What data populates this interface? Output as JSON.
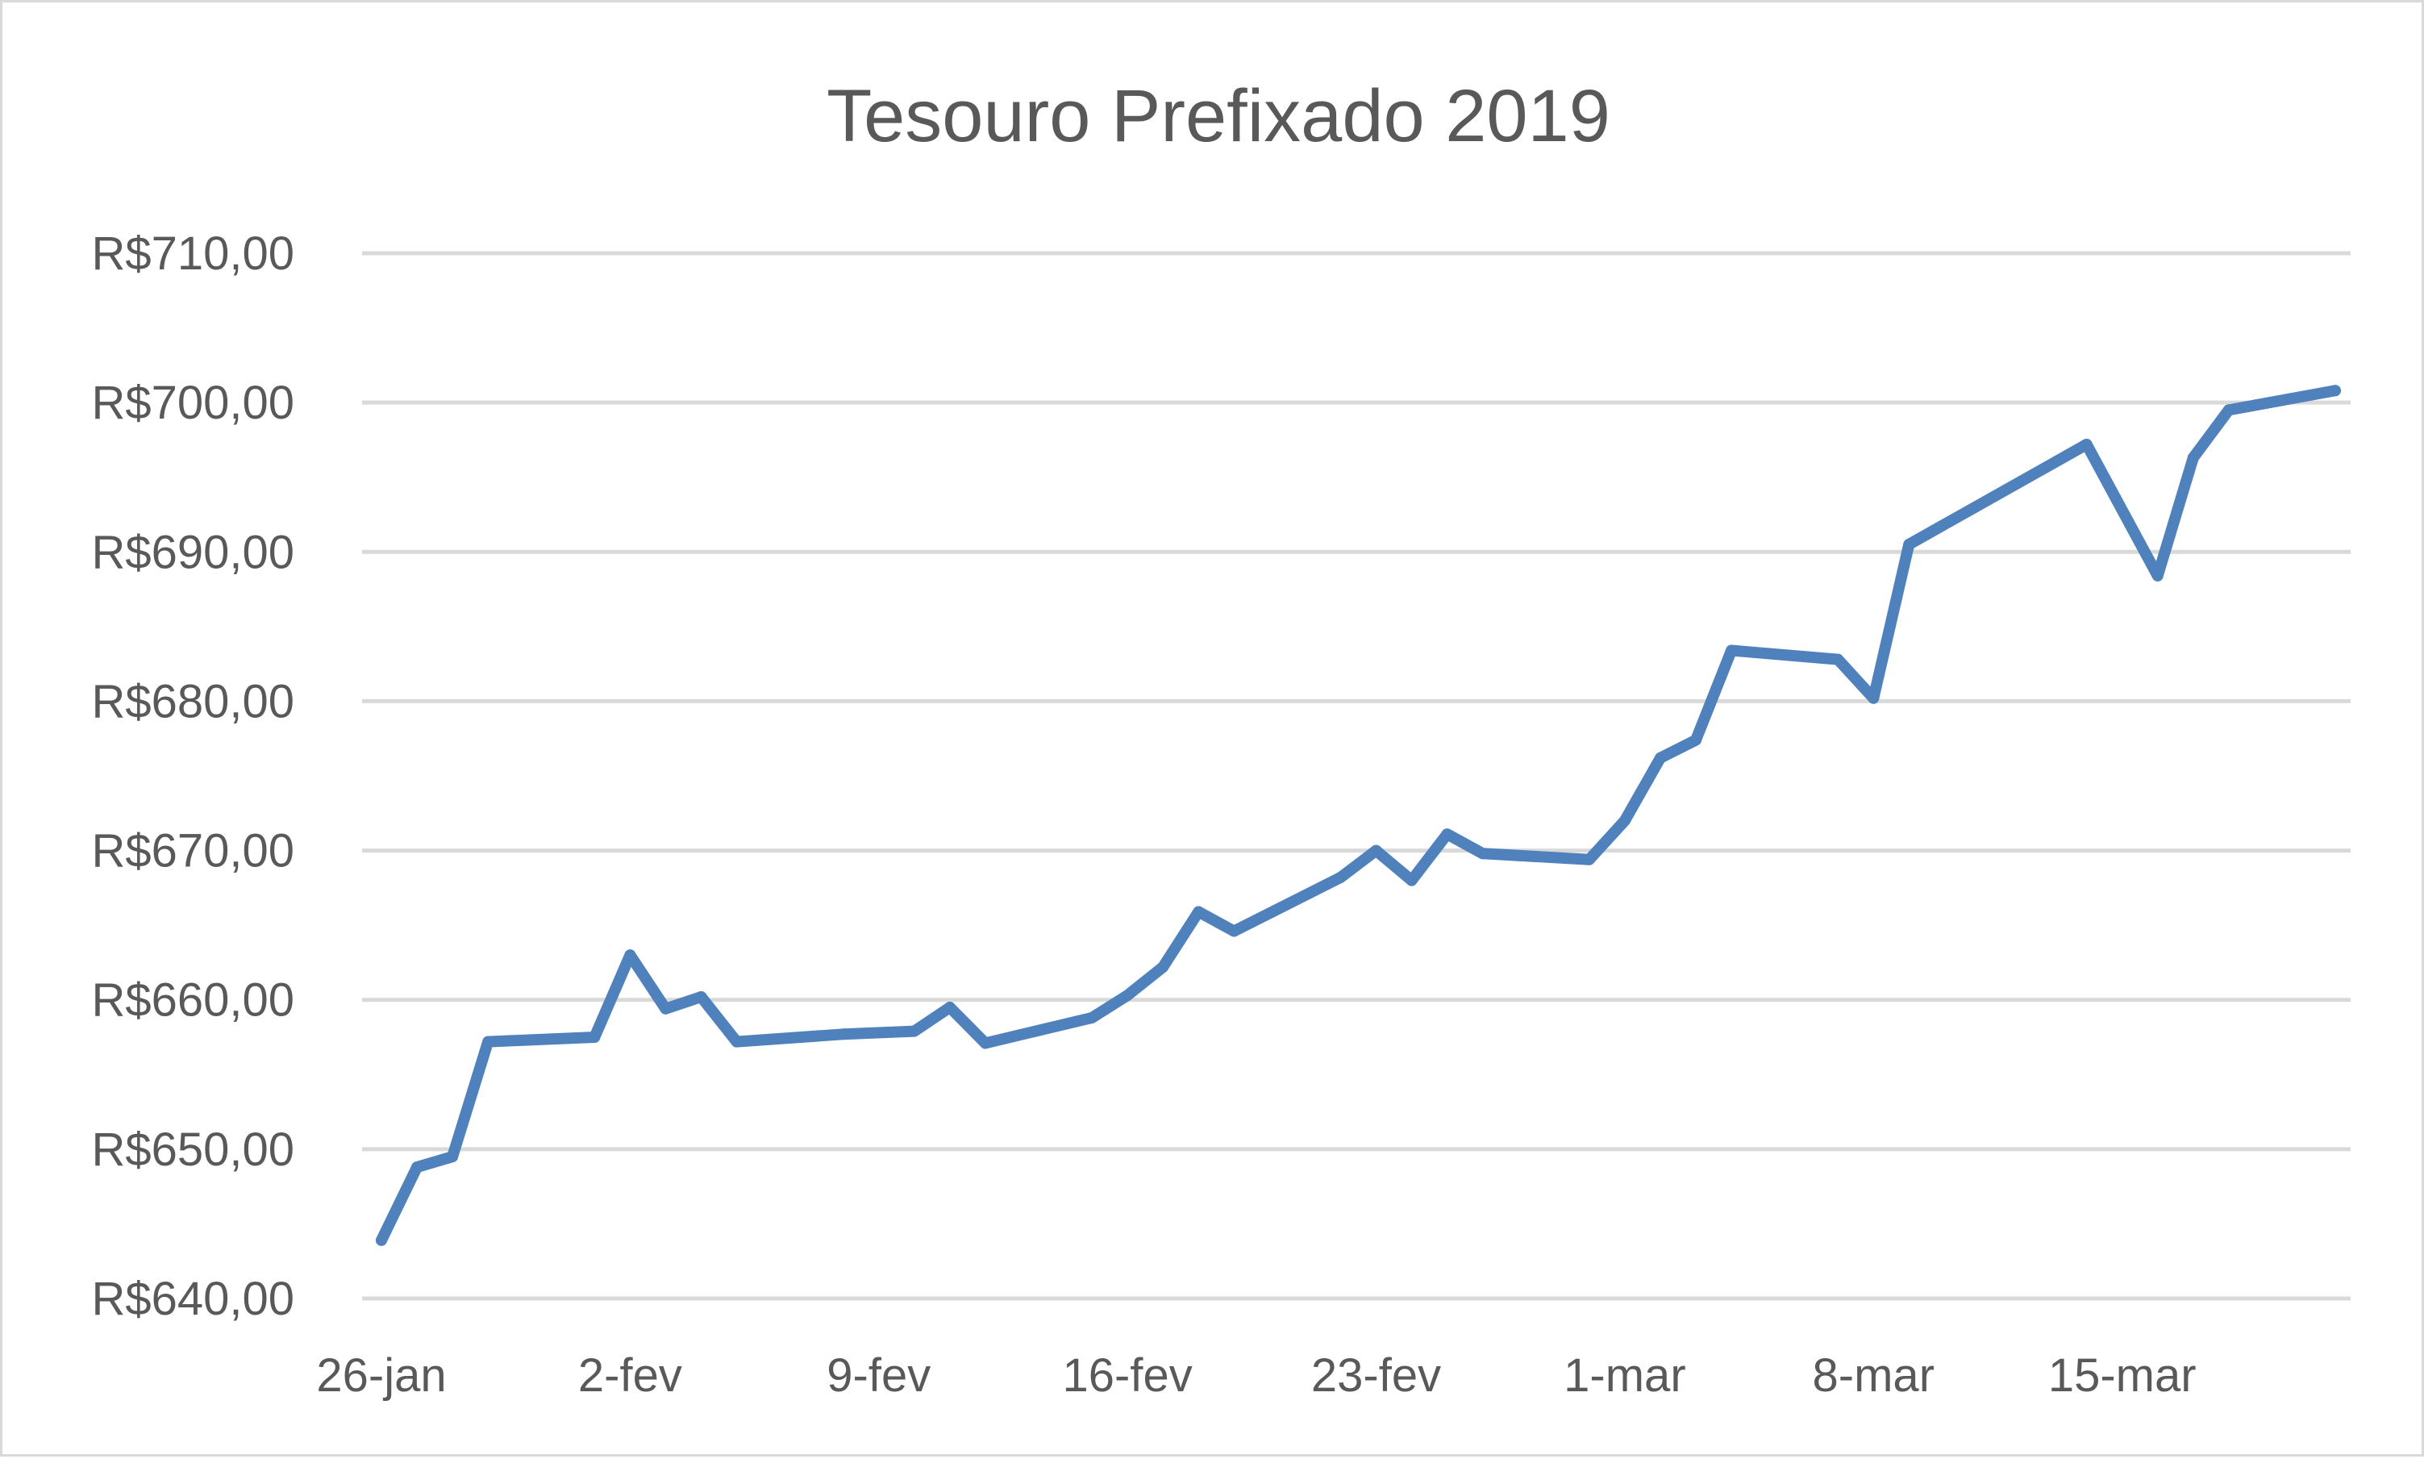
{
  "chart_data": {
    "type": "line",
    "title": "Tesouro Prefixado 2019",
    "xlabel": "",
    "ylabel": "",
    "ylim": [
      640,
      710
    ],
    "y_ticks": [
      {
        "value": 640,
        "label": "R$640,00"
      },
      {
        "value": 650,
        "label": "R$650,00"
      },
      {
        "value": 660,
        "label": "R$660,00"
      },
      {
        "value": 670,
        "label": "R$670,00"
      },
      {
        "value": 680,
        "label": "R$680,00"
      },
      {
        "value": 690,
        "label": "R$690,00"
      },
      {
        "value": 700,
        "label": "R$700,00"
      },
      {
        "value": 710,
        "label": "R$710,00"
      }
    ],
    "x_ticks": [
      "26-jan",
      "2-fev",
      "9-fev",
      "16-fev",
      "23-fev",
      "1-mar",
      "8-mar",
      "15-mar"
    ],
    "grid": true,
    "legend": "none",
    "color": "#4f81bd",
    "series": [
      {
        "values": [
          {
            "x": "2018-01-26",
            "y": 643.9
          },
          {
            "x": "2018-01-27",
            "y": 648.8
          },
          {
            "x": "2018-01-28",
            "y": 649.5
          },
          {
            "x": "2018-01-29",
            "y": 657.2
          },
          {
            "x": "2018-02-01",
            "y": 657.5
          },
          {
            "x": "2018-02-02",
            "y": 663.0
          },
          {
            "x": "2018-02-03",
            "y": 659.4
          },
          {
            "x": "2018-02-04",
            "y": 660.2
          },
          {
            "x": "2018-02-05",
            "y": 657.2
          },
          {
            "x": "2018-02-08",
            "y": 657.7
          },
          {
            "x": "2018-02-10",
            "y": 657.9
          },
          {
            "x": "2018-02-11",
            "y": 659.5
          },
          {
            "x": "2018-02-12",
            "y": 657.1
          },
          {
            "x": "2018-02-15",
            "y": 658.8
          },
          {
            "x": "2018-02-16",
            "y": 660.3
          },
          {
            "x": "2018-02-17",
            "y": 662.2
          },
          {
            "x": "2018-02-18",
            "y": 665.9
          },
          {
            "x": "2018-02-19",
            "y": 664.6
          },
          {
            "x": "2018-02-22",
            "y": 668.2
          },
          {
            "x": "2018-02-23",
            "y": 670.0
          },
          {
            "x": "2018-02-24",
            "y": 668.0
          },
          {
            "x": "2018-02-25",
            "y": 671.1
          },
          {
            "x": "2018-02-26",
            "y": 669.8
          },
          {
            "x": "2018-03-01",
            "y": 669.4
          },
          {
            "x": "2018-03-02",
            "y": 672.0
          },
          {
            "x": "2018-03-03",
            "y": 676.2
          },
          {
            "x": "2018-03-04",
            "y": 677.4
          },
          {
            "x": "2018-03-05",
            "y": 683.4
          },
          {
            "x": "2018-03-08",
            "y": 682.8
          },
          {
            "x": "2018-03-09",
            "y": 680.2
          },
          {
            "x": "2018-03-10",
            "y": 690.5
          },
          {
            "x": "2018-03-15",
            "y": 697.2
          },
          {
            "x": "2018-03-17",
            "y": 688.4
          },
          {
            "x": "2018-03-18",
            "y": 696.3
          },
          {
            "x": "2018-03-19",
            "y": 699.5
          },
          {
            "x": "2018-03-22",
            "y": 700.8
          }
        ]
      }
    ]
  }
}
